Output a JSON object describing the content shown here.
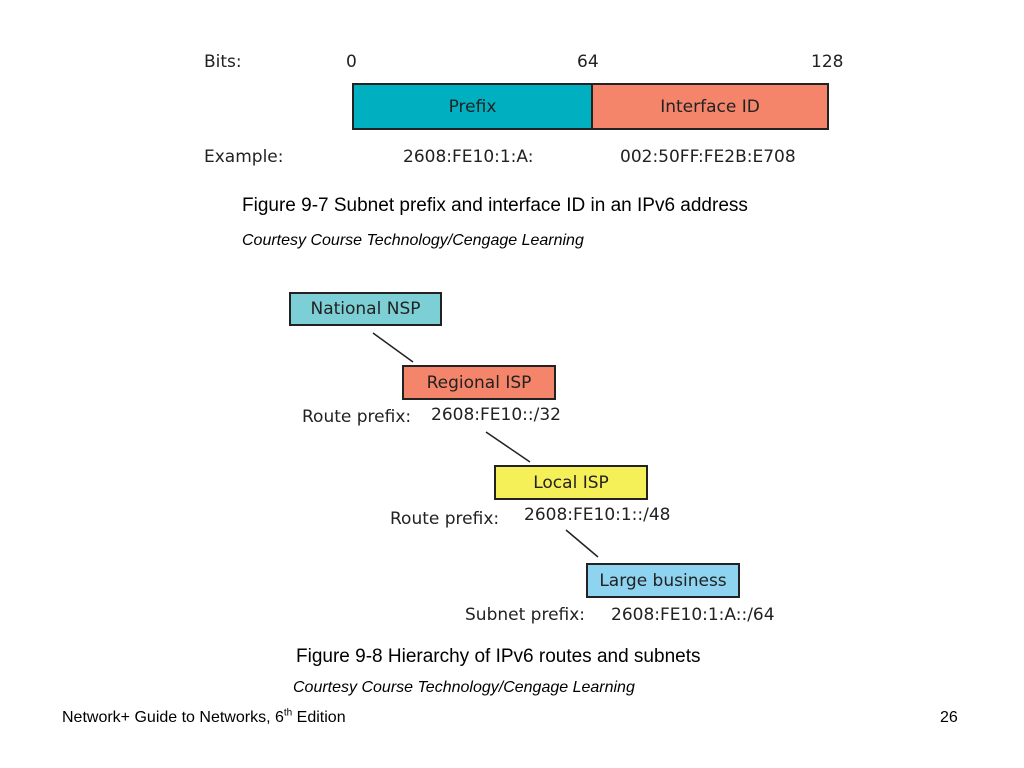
{
  "figure_9_7": {
    "bits_label": "Bits:",
    "tick_0": "0",
    "tick_64": "64",
    "tick_128": "128",
    "prefix_label": "Prefix",
    "interface_label": "Interface ID",
    "example_label": "Example:",
    "example_prefix": "2608:FE10:1:A:",
    "example_interface": "002:50FF:FE2B:E708",
    "caption": "Figure 9-7 Subnet prefix and interface ID in an IPv6 address",
    "credit": "Courtesy Course Technology/Cengage Learning",
    "colors": {
      "prefix": "#00b0c0",
      "interface": "#f4846a"
    }
  },
  "figure_9_8": {
    "nodes": [
      {
        "label": "National NSP",
        "color": "#7dcfd6"
      },
      {
        "label": "Regional ISP",
        "color": "#f4846a"
      },
      {
        "label": "Local ISP",
        "color": "#f5ef58"
      },
      {
        "label": "Large business",
        "color": "#8ed3ef"
      }
    ],
    "routes": [
      {
        "label": "Route prefix:",
        "value": "2608:FE10::/32"
      },
      {
        "label": "Route prefix:",
        "value": "2608:FE10:1::/48"
      },
      {
        "label": "Subnet prefix:",
        "value": "2608:FE10:1:A::/64"
      }
    ],
    "caption": "Figure 9-8 Hierarchy of IPv6 routes and subnets",
    "credit": "Courtesy Course Technology/Cengage Learning"
  },
  "footer": {
    "title": "Network+ Guide to Networks, 6",
    "title_sup": "th",
    "title_suffix": " Edition",
    "page_number": "26"
  }
}
